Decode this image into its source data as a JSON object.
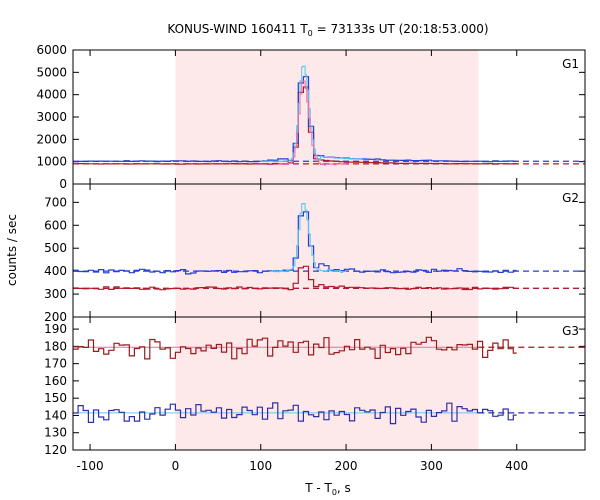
{
  "chart_data": {
    "type": "line",
    "title_main": "KONUS-WIND 160411 T",
    "title_sub": "0",
    "title_rest": " = 73133s UT (20:18:53.000)",
    "xlabel_main": "T - T",
    "xlabel_sub": "0",
    "xlabel_rest": ", s",
    "ylabel": "counts / sec",
    "xlim": [
      -120,
      480
    ],
    "x_ticks": [
      -100,
      0,
      100,
      200,
      300,
      400
    ],
    "shade_interval": [
      0,
      355
    ],
    "colors": {
      "blue": "#1f3fd6",
      "red": "#b0182c",
      "cyan": "#4fc8ee",
      "pink": "#f06aa0",
      "shade": "#fde8ea",
      "darkred": "#9b1b1b",
      "navy": "#2d2fa8",
      "lightblue": "#66c9ee"
    },
    "panels": [
      {
        "label": "G1",
        "ylim": [
          0,
          6000
        ],
        "y_ticks": [
          0,
          1000,
          2000,
          3000,
          4000,
          5000,
          6000
        ],
        "bg_blue": 1020,
        "bg_red": 900,
        "peak_blue": 5250,
        "peak_red": 4750
      },
      {
        "label": "G2",
        "ylim": [
          200,
          780
        ],
        "y_ticks": [
          200,
          300,
          400,
          500,
          600,
          700
        ],
        "bg_blue": 400,
        "bg_red": 325,
        "peak_blue": 690,
        "peak_red": 430
      },
      {
        "label": "G3",
        "ylim": [
          120,
          197
        ],
        "y_ticks": [
          120,
          130,
          140,
          150,
          160,
          170,
          180,
          190
        ],
        "bg_red": 179.5,
        "bg_blue": 141.5
      }
    ]
  }
}
